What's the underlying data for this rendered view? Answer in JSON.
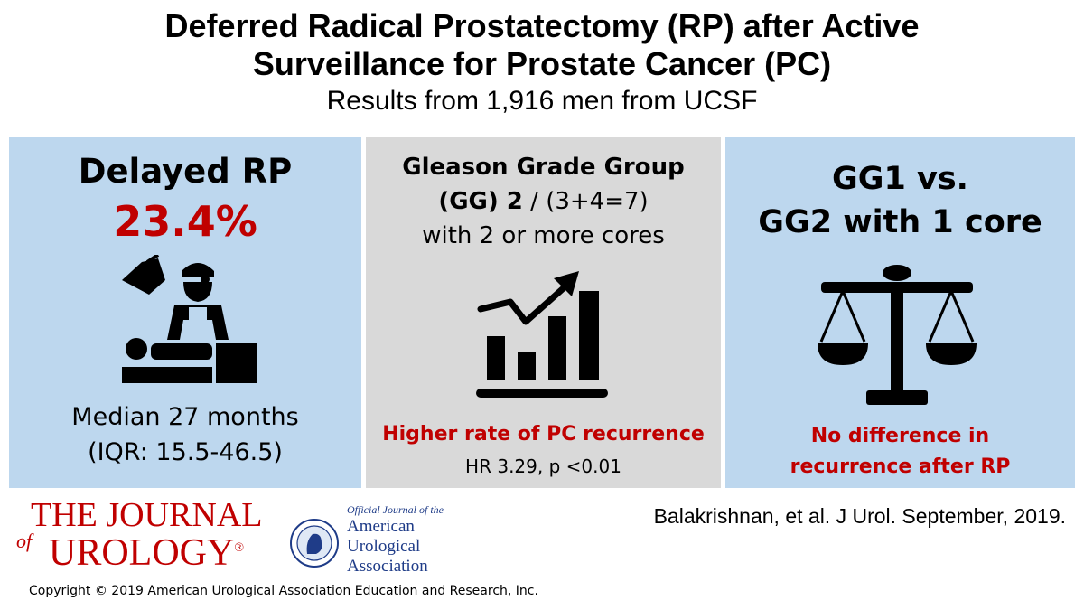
{
  "header": {
    "title_line1": "Deferred Radical Prostatectomy (RP) after Active",
    "title_line2": "Surveillance for Prostate Cancer (PC)",
    "subtitle": "Results from 1,916 men from UCSF"
  },
  "panel_left": {
    "heading": "Delayed RP",
    "percent": "23.4%",
    "icon": "surgeon-operating-icon",
    "median": "Median 27 months",
    "iqr": "(IQR: 15.5-46.5)",
    "bg_color": "#bdd7ee"
  },
  "panel_middle": {
    "line1": "Gleason Grade Group",
    "line2_bold": "(GG) 2",
    "line2_rest": " / (3+4=7)",
    "line3": "with 2 or more cores",
    "icon": "rising-bar-chart-icon",
    "finding": "Higher rate of PC recurrence",
    "stats": "HR 3.29, p <0.01",
    "bg_color": "#d9d9d9"
  },
  "panel_right": {
    "line1": "GG1 vs.",
    "line2": "GG2 with 1 core",
    "icon": "balance-scale-icon",
    "finding_line1": "No difference in",
    "finding_line2": "recurrence after RP",
    "bg_color": "#bdd7ee"
  },
  "footer": {
    "journal_of": "of",
    "journal_the": "THE JOURNAL",
    "journal_urology": "UROLOGY",
    "journal_reg": "®",
    "aua_official": "Official Journal of the",
    "aua_name_1": "American",
    "aua_name_2": "Urological",
    "aua_name_3": "Association",
    "citation": "Balakrishnan, et al. J Urol. September, 2019.",
    "copyright": "Copyright © 2019 American Urological Association Education and Research, Inc."
  },
  "colors": {
    "accent_red": "#c00000",
    "aua_blue": "#1f3c88"
  }
}
